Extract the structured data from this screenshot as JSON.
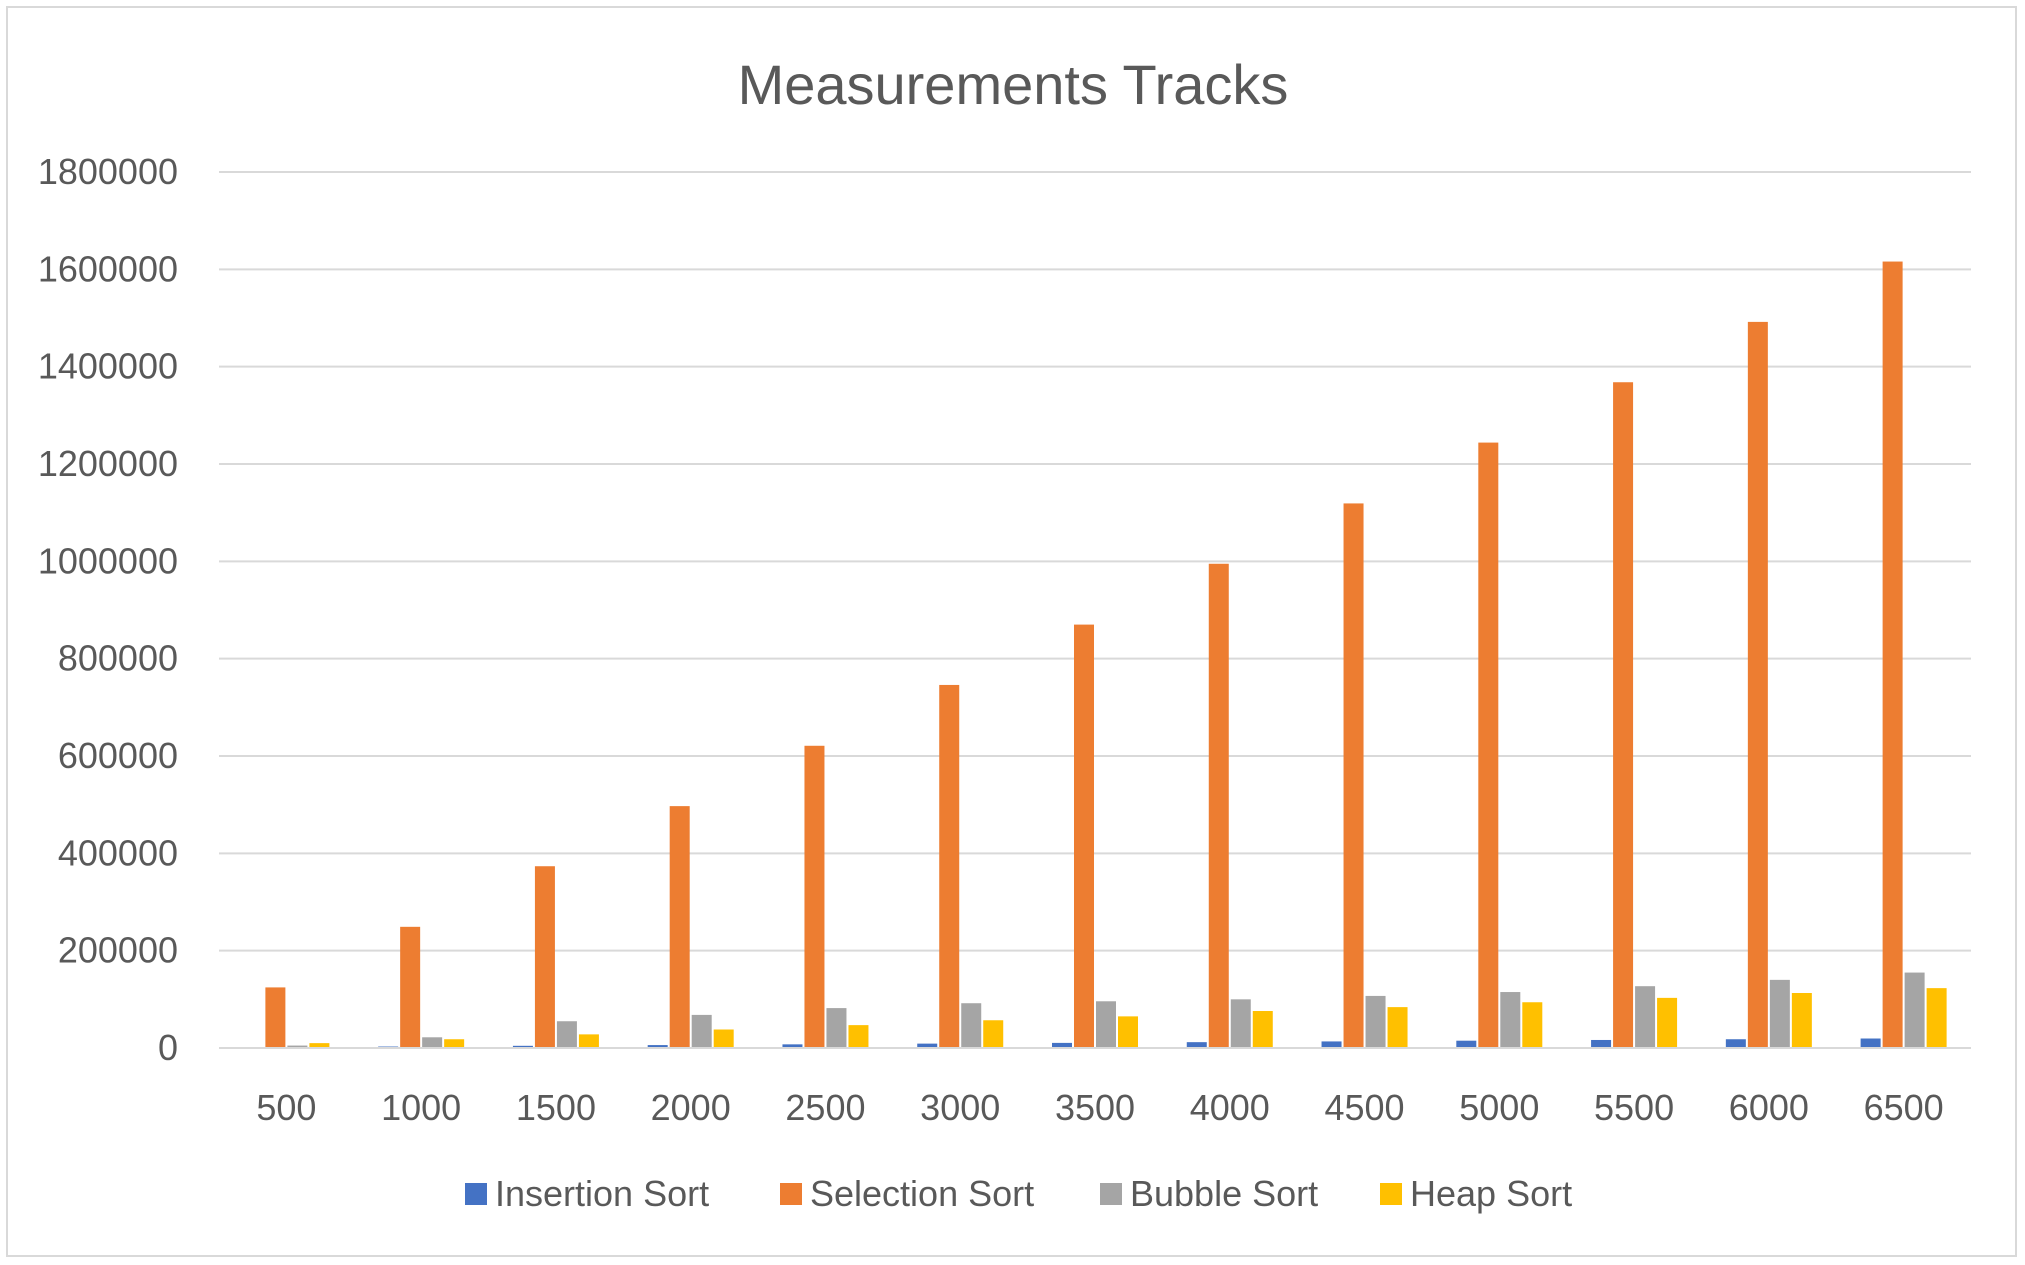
{
  "chart_data": {
    "type": "bar",
    "title": "Measurements Tracks",
    "xlabel": "",
    "ylabel": "",
    "categories": [
      "500",
      "1000",
      "1500",
      "2000",
      "2500",
      "3000",
      "3500",
      "4000",
      "4500",
      "5000",
      "5500",
      "6000",
      "6500"
    ],
    "ylim": [
      0,
      1800000
    ],
    "yticks": [
      0,
      200000,
      400000,
      600000,
      800000,
      1000000,
      1200000,
      1400000,
      1600000,
      1800000
    ],
    "ytick_labels": [
      "0",
      "200000",
      "400000",
      "600000",
      "800000",
      "1000000",
      "1200000",
      "1400000",
      "1600000",
      "1800000"
    ],
    "grid": true,
    "legend_position": "bottom",
    "series": [
      {
        "name": "Insertion Sort",
        "color": "#4472C4",
        "values": [
          1500,
          3000,
          4500,
          6000,
          7500,
          9000,
          10500,
          12000,
          13500,
          15000,
          16500,
          18000,
          19500
        ]
      },
      {
        "name": "Selection Sort",
        "color": "#ED7D31",
        "values": [
          124500,
          249000,
          373500,
          497000,
          621000,
          746000,
          870000,
          995000,
          1119000,
          1244000,
          1368000,
          1492000,
          1616000
        ]
      },
      {
        "name": "Bubble Sort",
        "color": "#A5A5A5",
        "values": [
          5000,
          22000,
          55000,
          68000,
          82000,
          92000,
          96000,
          100000,
          107000,
          115000,
          127000,
          140000,
          155000
        ]
      },
      {
        "name": "Heap Sort",
        "color": "#FFC000",
        "values": [
          10000,
          18000,
          28000,
          38000,
          47000,
          57000,
          65000,
          76000,
          84000,
          94000,
          103000,
          113000,
          123000
        ]
      }
    ]
  }
}
